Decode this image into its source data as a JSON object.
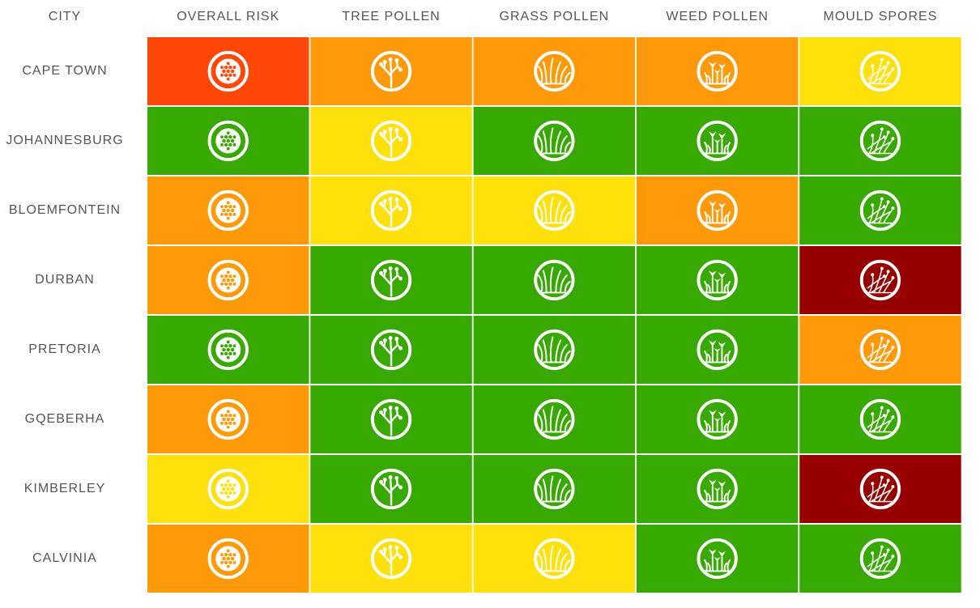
{
  "table": {
    "header": [
      "CITY",
      "OVERALL RISK",
      "TREE POLLEN",
      "GRASS POLLEN",
      "WEED POLLEN",
      "MOULD SPORES"
    ],
    "rows": [
      {
        "city": "CAPE TOWN",
        "colors": [
          "#ff4709",
          "#fe9a0a",
          "#fe9a0a",
          "#fe9a0a",
          "#fee00c"
        ]
      },
      {
        "city": "JOHANNESBURG",
        "colors": [
          "#38a802",
          "#fee00c",
          "#38a802",
          "#38a802",
          "#38a802"
        ]
      },
      {
        "city": "BLOEMFONTEIN",
        "colors": [
          "#fe9a0a",
          "#fee00c",
          "#fee00c",
          "#fe9a0a",
          "#38a802"
        ]
      },
      {
        "city": "DURBAN",
        "colors": [
          "#fe9a0a",
          "#38a802",
          "#38a802",
          "#38a802",
          "#980000"
        ]
      },
      {
        "city": "PRETORIA",
        "colors": [
          "#38a802",
          "#38a802",
          "#38a802",
          "#38a802",
          "#fe9a0a"
        ]
      },
      {
        "city": "GQEBERHA",
        "colors": [
          "#fe9a0a",
          "#38a802",
          "#38a802",
          "#38a802",
          "#38a802"
        ]
      },
      {
        "city": "KIMBERLEY",
        "colors": [
          "#fee00c",
          "#38a802",
          "#38a802",
          "#38a802",
          "#980000"
        ]
      },
      {
        "city": "CALVINIA",
        "colors": [
          "#fe9a0a",
          "#fee00c",
          "#fee00c",
          "#38a802",
          "#38a802"
        ]
      }
    ]
  }
}
